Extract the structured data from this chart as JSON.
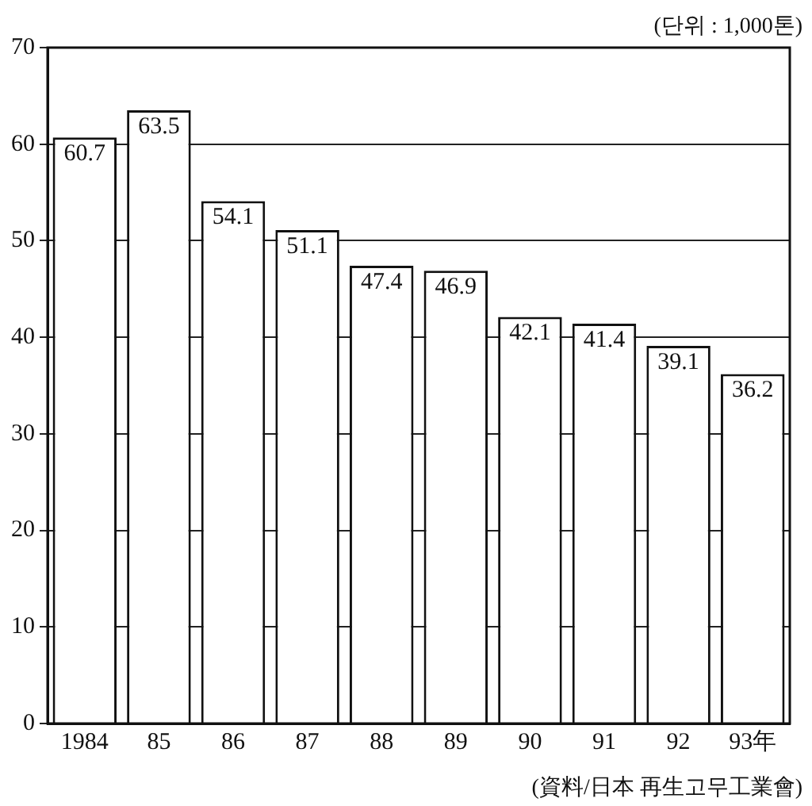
{
  "chart_data": {
    "type": "bar",
    "categories": [
      "1984",
      "85",
      "86",
      "87",
      "88",
      "89",
      "90",
      "91",
      "92",
      "93年"
    ],
    "values": [
      60.7,
      63.5,
      54.1,
      51.1,
      47.4,
      46.9,
      42.1,
      41.4,
      39.1,
      36.2
    ],
    "color": "#ffffff",
    "ylim": [
      0,
      70
    ],
    "yticks": [
      0,
      10,
      20,
      30,
      40,
      50,
      60,
      70
    ],
    "grid": "y",
    "data_labels": true,
    "legend": false,
    "annotations": [
      "(단위 : 1,000톤)",
      "(資料/日本 再生고무工業會)"
    ]
  }
}
